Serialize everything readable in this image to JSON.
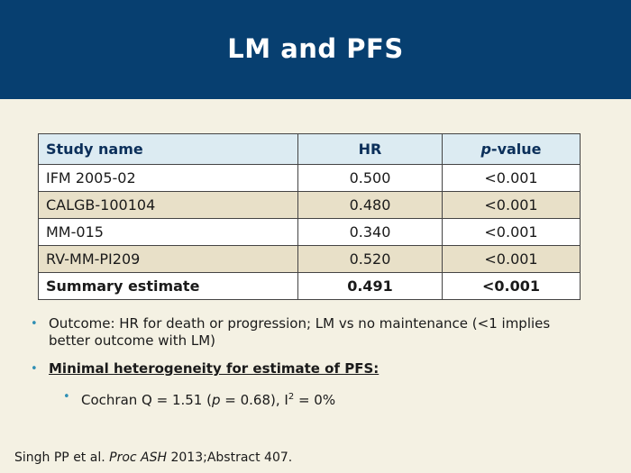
{
  "slide": {
    "title": "LM and PFS"
  },
  "table": {
    "headers": {
      "study": "Study name",
      "hr": "HR",
      "p_italic": "p",
      "p_suffix": "-value"
    },
    "rows": [
      {
        "study": "IFM 2005-02",
        "hr": "0.500",
        "p": "<0.001"
      },
      {
        "study": "CALGB-100104",
        "hr": "0.480",
        "p": "<0.001"
      },
      {
        "study": "MM-015",
        "hr": "0.340",
        "p": "<0.001"
      },
      {
        "study": "RV-MM-PI209",
        "hr": "0.520",
        "p": "<0.001"
      }
    ],
    "summary": {
      "study": "Summary estimate",
      "hr": "0.491",
      "p": "<0.001"
    }
  },
  "bullets": {
    "b1": "Outcome: HR for death or progression; LM vs no maintenance (<1 implies better outcome with LM)",
    "b2": "Minimal heterogeneity for estimate of PFS:",
    "b3_pre": "Cochran Q = 1.51 (",
    "b3_p": "p",
    "b3_mid": " = 0.68), I",
    "b3_sup": "2",
    "b3_post": " = 0%"
  },
  "footer": {
    "pre": "Singh PP et al. ",
    "journal": "Proc ASH",
    "post": " 2013;Abstract 407."
  },
  "bullet_glyph": "•"
}
